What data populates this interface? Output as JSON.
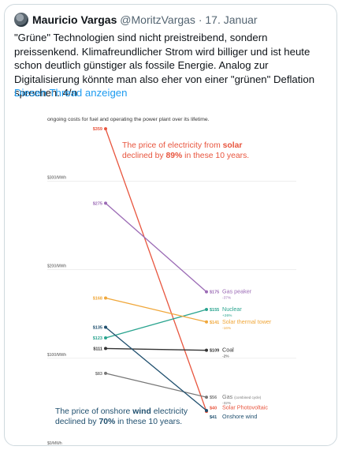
{
  "tweet": {
    "author_name": "Mauricio Vargas",
    "handle": "@MoritzVargas",
    "separator": "·",
    "date": "17. Januar",
    "text": "\"Grüne\" Technologien sind nicht preistreibend, sondern preissenkend. Klimafreundlicher Strom wird billiger und ist heute schon deutlich günstiger als fossile Energie. Analog zur Digitalisierung könnte man also eher von einer \"grünen\" Deflation sprechen. 4/n",
    "thread_link": "Diesen Thread anzeigen"
  },
  "colors": {
    "link": "#1d9bf0",
    "solar": "#e8553e",
    "gas_peaker": "#9b6bb5",
    "nuclear": "#2aa48f",
    "solar_thermal": "#f0a73a",
    "coal": "#333333",
    "gas_combined": "#777777",
    "wind": "#1f4f6e"
  },
  "chart_data": {
    "type": "line",
    "subtitle": "ongoing costs for fuel and operating the power plant over its lifetime.",
    "y_ticks": [
      "$300/MWh",
      "$200/MWh",
      "$100/MWh",
      "$0/MWh"
    ],
    "y_tick_values": [
      300,
      200,
      100,
      0
    ],
    "ylim": [
      0,
      370
    ],
    "x": [
      "2009",
      "2019"
    ],
    "annotation_solar": {
      "pre": "The price of electricity from ",
      "bold1": "solar",
      "mid": "declined by ",
      "bold2": "89%",
      "post": " in these 10 years."
    },
    "annotation_wind": {
      "pre": "The price of onshore ",
      "bold1": "wind",
      "mid": " electricity",
      "line2": "declined by ",
      "bold2": "70%",
      "post": " in these 10 years."
    },
    "series": [
      {
        "key": "solar",
        "name": "Solar Photovoltaic",
        "change": "",
        "start": 359,
        "end": 40,
        "start_label": "$359",
        "end_label": "$40",
        "color": "#e8553e"
      },
      {
        "key": "gas_peaker",
        "name": "Gas peaker",
        "change": "-37%",
        "start": 275,
        "end": 175,
        "start_label": "$275",
        "end_label": "$175",
        "color": "#9b6bb5"
      },
      {
        "key": "nuclear",
        "name": "Nuclear",
        "change": "+26%",
        "start": 123,
        "end": 155,
        "start_label": "$123",
        "end_label": "$155",
        "color": "#2aa48f"
      },
      {
        "key": "solar_thermal",
        "name": "Solar thermal tower",
        "change": "-16%",
        "start": 168,
        "end": 141,
        "start_label": "$168",
        "end_label": "$141",
        "color": "#f0a73a"
      },
      {
        "key": "coal",
        "name": "Coal",
        "change": "-2%",
        "start": 111,
        "end": 109,
        "start_label": "$111",
        "end_label": "$109",
        "color": "#333333"
      },
      {
        "key": "gas_combined",
        "name": "Gas",
        "suffix": "(combined cycle)",
        "change": "-32%",
        "start": 83,
        "end": 56,
        "start_label": "$83",
        "end_label": "$56",
        "color": "#777777"
      },
      {
        "key": "wind",
        "name": "Onshore wind",
        "change": "",
        "start": 135,
        "end": 41,
        "start_label": "$135",
        "end_label": "$41",
        "color": "#1f4f6e"
      }
    ]
  }
}
